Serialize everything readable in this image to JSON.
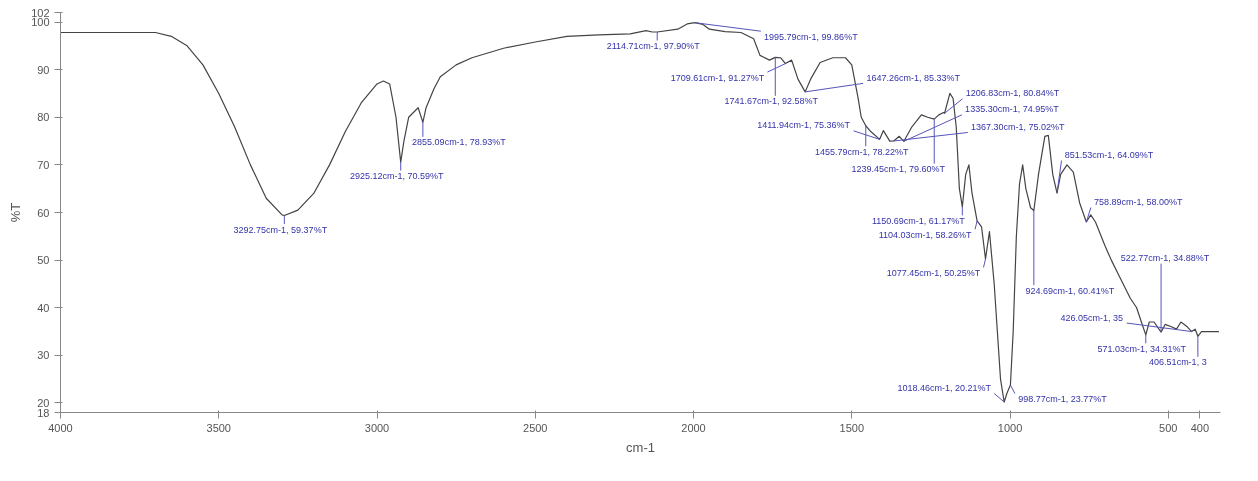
{
  "chart_data": {
    "type": "line",
    "xlabel": "cm-1",
    "ylabel": "%T",
    "xlim": [
      4000,
      335
    ],
    "ylim": [
      18,
      102
    ],
    "xticks": [
      4000,
      3500,
      3000,
      2500,
      2000,
      1500,
      1000,
      500,
      400
    ],
    "yticks": [
      18,
      20,
      30,
      40,
      50,
      60,
      70,
      80,
      90,
      100,
      102
    ],
    "grid": false,
    "marker": "none",
    "line_style": "solid",
    "series": [
      {
        "color": "#444444",
        "x": [
          4000,
          3700,
          3650,
          3600,
          3550,
          3500,
          3450,
          3400,
          3350,
          3300,
          3292.75,
          3250,
          3200,
          3150,
          3100,
          3050,
          3000,
          2980,
          2960,
          2940,
          2925.12,
          2915,
          2900,
          2870,
          2855.09,
          2845,
          2820,
          2800,
          2750,
          2700,
          2600,
          2500,
          2400,
          2300,
          2200,
          2150,
          2130,
          2114.71,
          2050,
          2020,
          1995.79,
          1970,
          1950,
          1900,
          1850,
          1810,
          1790,
          1760,
          1741.67,
          1725,
          1709.61,
          1690,
          1670,
          1647.26,
          1630,
          1600,
          1560,
          1520,
          1500,
          1480,
          1470,
          1455.79,
          1440,
          1411.94,
          1400,
          1380,
          1367.3,
          1350,
          1335.3,
          1310,
          1280,
          1260,
          1239.45,
          1225,
          1210,
          1206.83,
          1190,
          1180,
          1170,
          1160,
          1150.69,
          1140,
          1130,
          1120,
          1104.03,
          1090,
          1077.45,
          1065,
          1050,
          1040,
          1030,
          1018.46,
          1010,
          998.77,
          990,
          980,
          970,
          960,
          950,
          935,
          924.69,
          910,
          890,
          879,
          865,
          851.53,
          840,
          820,
          800,
          780,
          758.89,
          745,
          730,
          700,
          680,
          650,
          620,
          600,
          590,
          580,
          571.03,
          560,
          545,
          522.77,
          510,
          490,
          474,
          460,
          440,
          426.05,
          415,
          406.51,
          395,
          380,
          340
        ],
        "values": [
          97.8,
          97.8,
          97,
          95,
          91,
          85,
          78,
          70,
          63,
          59.5,
          59.37,
          60.5,
          64,
          70,
          77,
          83,
          87,
          87.6,
          87,
          80,
          70.59,
          75,
          80,
          82,
          78.93,
          82,
          86,
          88.5,
          91,
          92.5,
          94.5,
          95.8,
          97,
          97.3,
          97.5,
          98.2,
          97.9,
          97.9,
          98.5,
          99.6,
          99.86,
          99.5,
          98.5,
          98,
          97.8,
          96.5,
          93,
          92,
          92.58,
          92.5,
          91.27,
          92,
          88,
          85.33,
          88,
          91.5,
          92.5,
          92.5,
          91,
          84,
          80,
          78.22,
          77,
          75.36,
          77.2,
          75,
          75.02,
          76,
          74.95,
          78,
          80.5,
          80,
          79.6,
          80.5,
          81,
          80.84,
          85,
          84,
          78,
          65,
          61.17,
          68,
          70,
          64,
          58.26,
          57,
          50.25,
          56,
          45,
          35,
          25,
          20.21,
          22,
          23.77,
          35,
          55,
          66,
          70,
          65,
          61,
          60.41,
          68,
          76,
          76.2,
          68,
          64.09,
          68,
          70,
          68.5,
          62,
          58,
          59.5,
          58,
          53,
          50,
          46,
          42,
          40,
          38,
          36,
          34.31,
          37,
          37,
          34.88,
          36.5,
          36,
          35.5,
          37,
          36,
          35,
          35.5,
          34,
          35,
          35,
          35
        ]
      }
    ],
    "annotations": [
      {
        "text": "3292.75cm-1, 59.37%T",
        "x": 3292.75,
        "y": 59.37
      },
      {
        "text": "2925.12cm-1, 70.59%T",
        "x": 2925.12,
        "y": 70.59
      },
      {
        "text": "2855.09cm-1, 78.93%T",
        "x": 2855.09,
        "y": 78.93
      },
      {
        "text": "2114.71cm-1, 97.90%T",
        "x": 2114.71,
        "y": 97.9
      },
      {
        "text": "1995.79cm-1, 99.86%T",
        "x": 1995.79,
        "y": 99.86
      },
      {
        "text": "1741.67cm-1, 92.58%T",
        "x": 1741.67,
        "y": 92.58
      },
      {
        "text": "1709.61cm-1, 91.27%T",
        "x": 1709.61,
        "y": 91.27
      },
      {
        "text": "1647.26cm-1, 85.33%T",
        "x": 1647.26,
        "y": 85.33
      },
      {
        "text": "1455.79cm-1, 78.22%T",
        "x": 1455.79,
        "y": 78.22
      },
      {
        "text": "1411.94cm-1, 75.36%T",
        "x": 1411.94,
        "y": 75.36
      },
      {
        "text": "1367.30cm-1, 75.02%T",
        "x": 1367.3,
        "y": 75.02
      },
      {
        "text": "1335.30cm-1, 74.95%T",
        "x": 1335.3,
        "y": 74.95
      },
      {
        "text": "1239.45cm-1, 79.60%T",
        "x": 1239.45,
        "y": 79.6
      },
      {
        "text": "1206.83cm-1, 80.84%T",
        "x": 1206.83,
        "y": 80.84
      },
      {
        "text": "1150.69cm-1, 61.17%T",
        "x": 1150.69,
        "y": 61.17
      },
      {
        "text": "1104.03cm-1, 58.26%T",
        "x": 1104.03,
        "y": 58.26
      },
      {
        "text": "1077.45cm-1, 50.25%T",
        "x": 1077.45,
        "y": 50.25
      },
      {
        "text": "1018.46cm-1, 20.21%T",
        "x": 1018.46,
        "y": 20.21
      },
      {
        "text": "998.77cm-1, 23.77%T",
        "x": 998.77,
        "y": 23.77
      },
      {
        "text": "924.69cm-1, 60.41%T",
        "x": 924.69,
        "y": 60.41
      },
      {
        "text": "851.53cm-1, 64.09%T",
        "x": 851.53,
        "y": 64.09
      },
      {
        "text": "758.89cm-1, 58.00%T",
        "x": 758.89,
        "y": 58
      },
      {
        "text": "571.03cm-1, 34.31%T",
        "x": 571.03,
        "y": 34.31
      },
      {
        "text": "522.77cm-1, 34.88%T",
        "x": 522.77,
        "y": 34.88
      },
      {
        "text": "426.05cm-1, 35",
        "x": 426.05,
        "y": 35
      },
      {
        "text": "406.51cm-1, 3",
        "x": 406.51,
        "y": 34
      }
    ]
  }
}
